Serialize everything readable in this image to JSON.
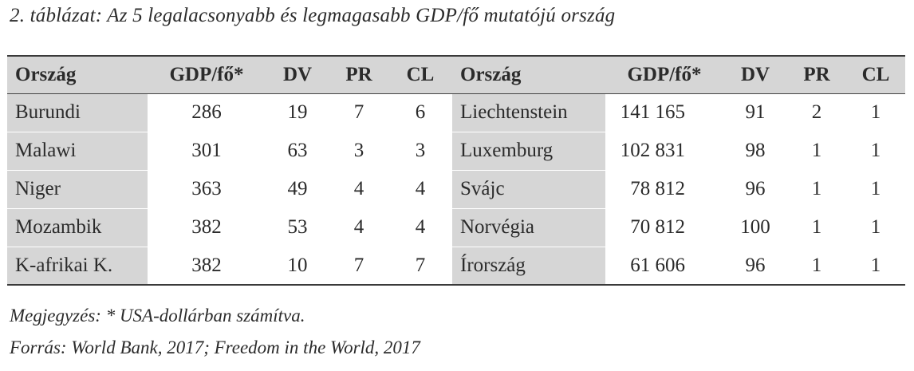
{
  "caption": "2. táblázat: Az 5 legalacsonyabb és legmagasabb GDP/fő mutatójú ország",
  "table": {
    "headers": [
      "Ország",
      "GDP/fő*",
      "DV",
      "PR",
      "CL",
      "Ország",
      "GDP/fő*",
      "DV",
      "PR",
      "CL"
    ],
    "rows": [
      [
        "Burundi",
        "286",
        "19",
        "7",
        "6",
        "Liechtenstein",
        "141 165",
        "91",
        "2",
        "1"
      ],
      [
        "Malawi",
        "301",
        "63",
        "3",
        "3",
        "Luxemburg",
        "102 831",
        "98",
        "1",
        "1"
      ],
      [
        "Niger",
        "363",
        "49",
        "4",
        "4",
        "Svájc",
        "78 812",
        "96",
        "1",
        "1"
      ],
      [
        "Mozambik",
        "382",
        "53",
        "4",
        "4",
        "Norvégia",
        "70 812",
        "100",
        "1",
        "1"
      ],
      [
        "K-afrikai K.",
        "382",
        "10",
        "7",
        "7",
        "Írország",
        "61 606",
        "96",
        "1",
        "1"
      ]
    ]
  },
  "notes": {
    "note": "Megjegyzés: * USA-dollárban számítva.",
    "source": "Forrás: World Bank, 2017; Freedom in the World, 2017"
  },
  "colors": {
    "shaded_cell": "#d6d6d6",
    "rule": "#3a3a3a",
    "text": "#2b2b2b"
  }
}
